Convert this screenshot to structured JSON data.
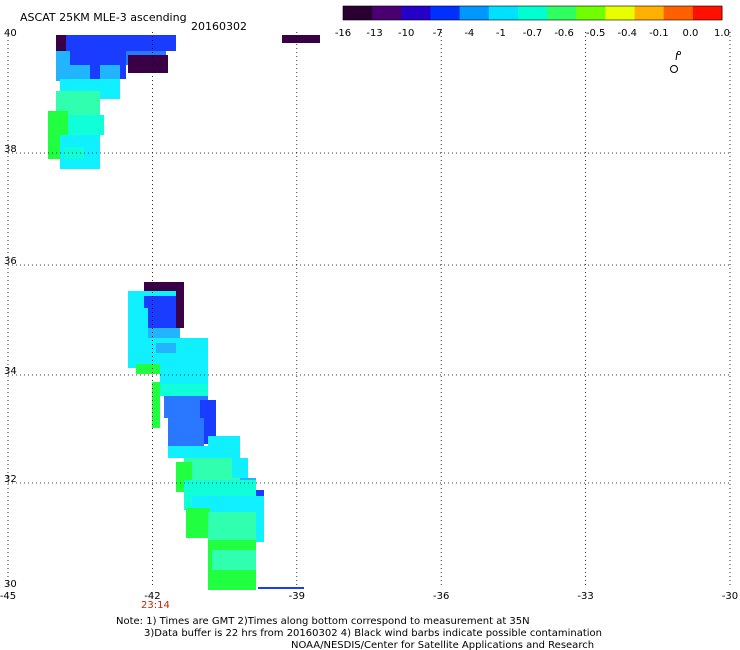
{
  "title": "ASCAT 25KM MLE-3 ascending",
  "date": "20160302",
  "colorbar": {
    "ticks": [
      "-16",
      "-13",
      "-10",
      "-7",
      "-4",
      "-1",
      "-0.7",
      "-0.6",
      "-0.5",
      "-0.4",
      "-0.1",
      "0.0",
      "1.0"
    ],
    "colors": [
      "#2a0030",
      "#4a0070",
      "#2400c8",
      "#0030ff",
      "#0098ff",
      "#00e0ff",
      "#00ffd0",
      "#30ff60",
      "#70ff00",
      "#e8ff00",
      "#ffb000",
      "#ff6000",
      "#ff1000"
    ]
  },
  "axes": {
    "lon_ticks": [
      "-45",
      "-42",
      "-39",
      "-36",
      "-33",
      "-30"
    ],
    "lat_ticks": [
      "40",
      "38",
      "36",
      "34",
      "32",
      "30"
    ],
    "lon_range": [
      -45,
      -30
    ],
    "lat_range": [
      30,
      40
    ]
  },
  "time_label": "23:14",
  "notes": [
    "Note: 1) Times are GMT 2)Times along bottom correspond to measurement at 35N",
    "3)Data buffer is 22 hrs from 20160302 4) Black wind barbs indicate possible contamination",
    "NOAA/NESDIS/Center for Satellite Applications and Research"
  ],
  "swath_colors": {
    "darkpurple": "#3a0045",
    "blue": "#1a3cff",
    "midblue": "#2a78ff",
    "lightblue": "#22b4ff",
    "cyan": "#10f0ff",
    "aqua": "#10ffd8",
    "seafoam": "#30ffb0",
    "green": "#20ff40"
  }
}
